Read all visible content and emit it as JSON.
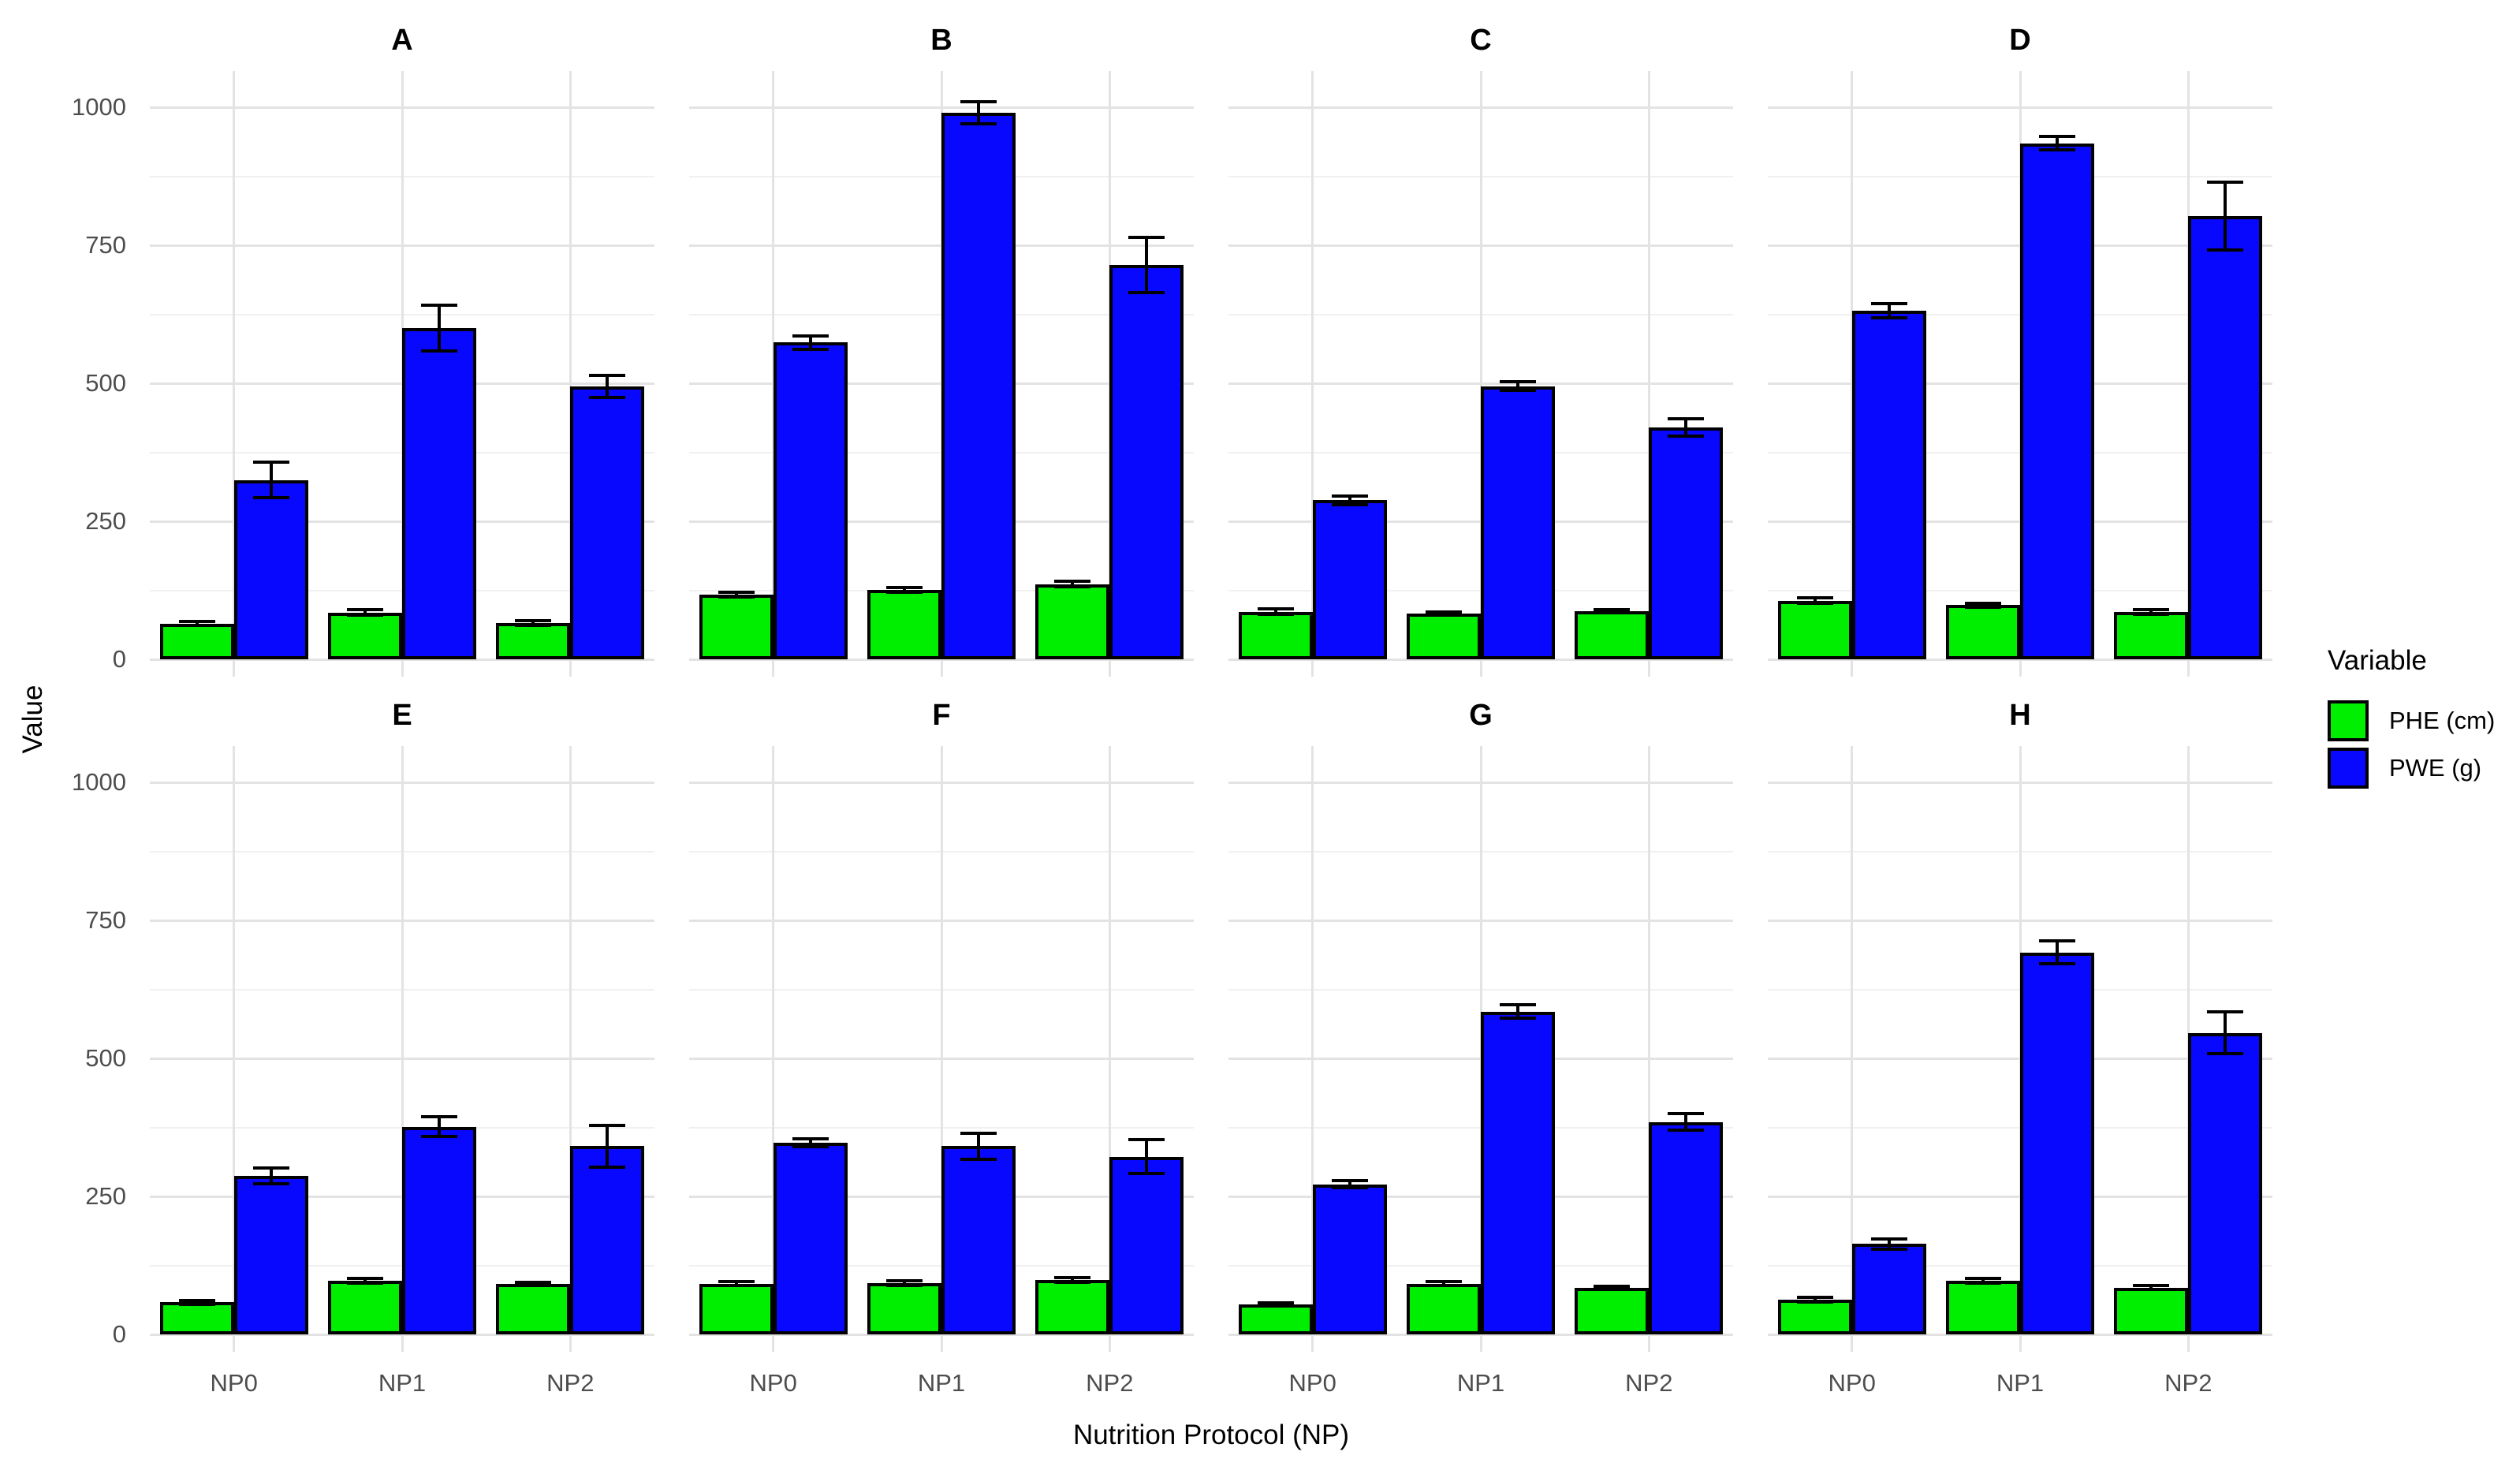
{
  "figure": {
    "background": "#ffffff"
  },
  "chart_data": {
    "type": "bar",
    "layout": "facet-grid 2 rows x 4 cols, grouped bars with error bars",
    "categories": [
      "NP0",
      "NP1",
      "NP2"
    ],
    "series_names": [
      "PHE (cm)",
      "PWE (g)"
    ],
    "xlabel": "Nutrition Protocol (NP)",
    "ylabel": "Value",
    "yticks": [
      0,
      250,
      500,
      750,
      1000
    ],
    "ylim": [
      0,
      1065
    ],
    "grid": "horizontal major every 250 with minor every 125; vertical major at each category",
    "legend_position": "right-center",
    "facets": [
      {
        "label": "A",
        "series": [
          {
            "name": "PHE (cm)",
            "values": [
              65,
              85,
              66
            ],
            "errors": [
              4,
              5,
              4
            ]
          },
          {
            "name": "PWE (g)",
            "values": [
              325,
              600,
              495
            ],
            "errors": [
              32,
              42,
              20
            ]
          }
        ]
      },
      {
        "label": "B",
        "series": [
          {
            "name": "PHE (cm)",
            "values": [
              117,
              126,
              136
            ],
            "errors": [
              4,
              4,
              5
            ]
          },
          {
            "name": "PWE (g)",
            "values": [
              574,
              990,
              714
            ],
            "errors": [
              12,
              20,
              50
            ]
          }
        ]
      },
      {
        "label": "C",
        "series": [
          {
            "name": "PHE (cm)",
            "values": [
              86,
              83,
              87
            ],
            "errors": [
              5,
              3,
              3
            ]
          },
          {
            "name": "PWE (g)",
            "values": [
              288,
              495,
              420
            ],
            "errors": [
              8,
              8,
              16
            ]
          }
        ]
      },
      {
        "label": "D",
        "series": [
          {
            "name": "PHE (cm)",
            "values": [
              106,
              98,
              86
            ],
            "errors": [
              5,
              4,
              4
            ]
          },
          {
            "name": "PWE (g)",
            "values": [
              632,
              935,
              803
            ],
            "errors": [
              13,
              12,
              62
            ]
          }
        ]
      },
      {
        "label": "E",
        "series": [
          {
            "name": "PHE (cm)",
            "values": [
              58,
              97,
              91
            ],
            "errors": [
              3,
              4,
              3
            ]
          },
          {
            "name": "PWE (g)",
            "values": [
              287,
              376,
              341
            ],
            "errors": [
              14,
              18,
              38
            ]
          }
        ]
      },
      {
        "label": "F",
        "series": [
          {
            "name": "PHE (cm)",
            "values": [
              92,
              93,
              99
            ],
            "errors": [
              4,
              4,
              4
            ]
          },
          {
            "name": "PWE (g)",
            "values": [
              347,
              341,
              322
            ],
            "errors": [
              7,
              24,
              31
            ]
          }
        ]
      },
      {
        "label": "G",
        "series": [
          {
            "name": "PHE (cm)",
            "values": [
              54,
              92,
              84
            ],
            "errors": [
              3,
              4,
              3
            ]
          },
          {
            "name": "PWE (g)",
            "values": [
              272,
              585,
              385
            ],
            "errors": [
              6,
              12,
              15
            ]
          }
        ]
      },
      {
        "label": "H",
        "series": [
          {
            "name": "PHE (cm)",
            "values": [
              63,
              97,
              85
            ],
            "errors": [
              4,
              4,
              3
            ]
          },
          {
            "name": "PWE (g)",
            "values": [
              164,
              692,
              546
            ],
            "errors": [
              9,
              21,
              38
            ]
          }
        ]
      }
    ],
    "colors": {
      "phe_fill": "#00ee00",
      "pwe_fill": "#0808ff",
      "bar_outline": "#000000",
      "grid_major": "#e3e3e3",
      "grid_minor": "#f0f0f0",
      "tick_label": "#4d4d4d",
      "text": "#000000"
    },
    "legend": {
      "title": "Variable",
      "entries": [
        {
          "label": "PHE (cm)",
          "color": "#00ee00"
        },
        {
          "label": "PWE (g)",
          "color": "#0808ff"
        }
      ]
    }
  }
}
